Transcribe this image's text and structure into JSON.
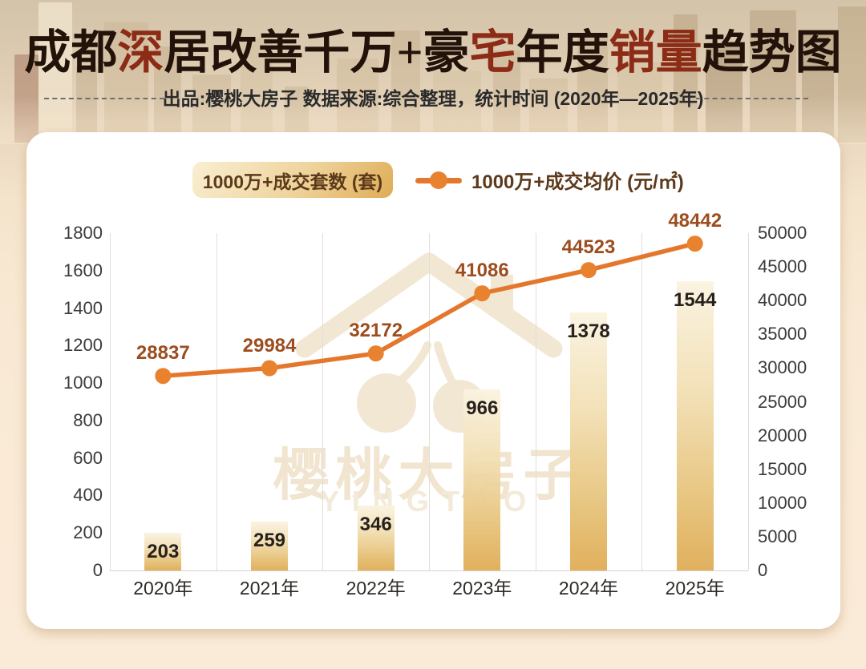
{
  "header": {
    "title": "成都深居改善千万+豪宅年度销量趋势图",
    "title_red_chars": "深宅销量",
    "subtitle": "出品:樱桃大房子 数据来源:综合整理，统计时间 (2020年—2025年)"
  },
  "legend": {
    "bar_label": "1000万+成交套数 (套)",
    "line_label": "1000万+成交均价 (元/㎡)"
  },
  "watermark": {
    "logo": "cherry-house-logo",
    "line1": "樱桃大房子",
    "line2": "YINGTAO"
  },
  "colors": {
    "line": "#E4772C",
    "dot": "#E9822F",
    "line_value_label": "#9C4D1E",
    "bar_gradient_top": "#FAF3E0",
    "bar_gradient_bottom": "#DFAC55",
    "bar_value_label": "#26211C",
    "title_accent": "#8C2B16",
    "card_background": "#FFFFFF",
    "page_background": "#F9E9D4"
  },
  "chart_data": {
    "type": "combo: bar + line",
    "categories": [
      "2020年",
      "2021年",
      "2022年",
      "2023年",
      "2024年",
      "2025年"
    ],
    "series": [
      {
        "name": "1000万+成交套数 (套)",
        "type": "bar",
        "axis": "left",
        "values": [
          203,
          259,
          346,
          966,
          1378,
          1544
        ]
      },
      {
        "name": "1000万+成交均价 (元/㎡)",
        "type": "line",
        "axis": "right",
        "values": [
          28837,
          29984,
          32172,
          41086,
          44523,
          48442
        ]
      }
    ],
    "left_axis": {
      "min": 0,
      "max": 1800,
      "step": 200
    },
    "right_axis": {
      "min": 0,
      "max": 50000,
      "step": 5000
    },
    "grid": "vertical category separators only",
    "legend_position": "top-center",
    "value_labels": "bar values inside bar tops; line values above points"
  }
}
